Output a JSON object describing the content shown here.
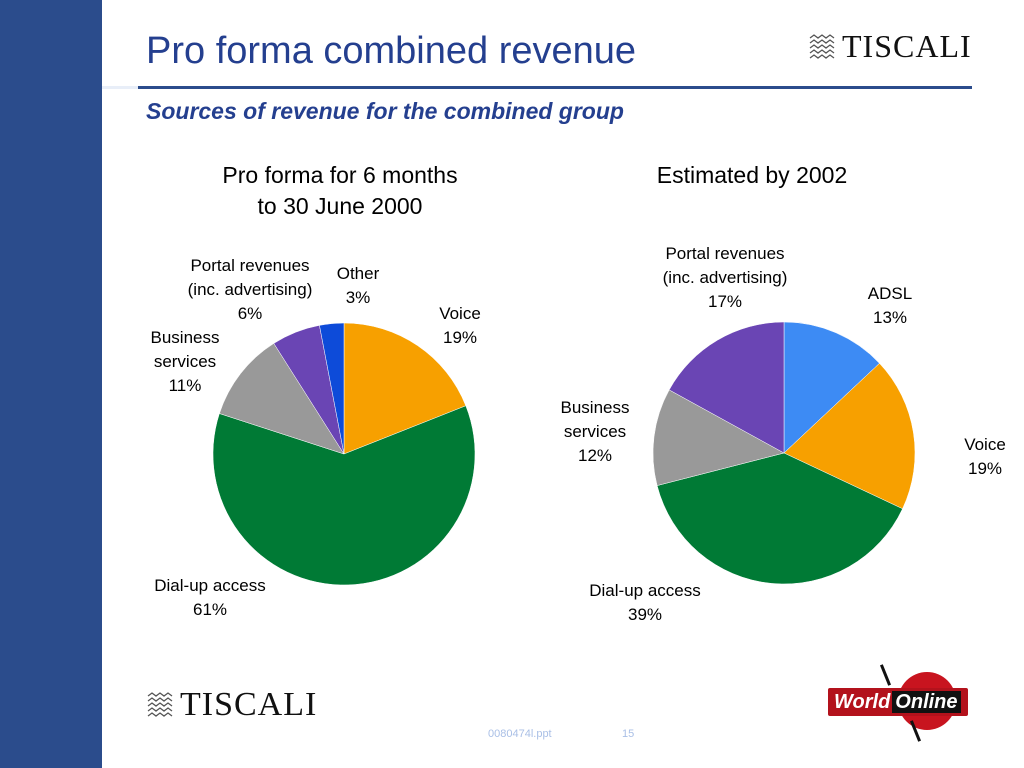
{
  "title": "Pro forma combined revenue",
  "subtitle": "Sources of revenue for the combined group",
  "brand": {
    "name": "TISCALI",
    "partner": "World Online",
    "partner_a": "World",
    "partner_b": "Online"
  },
  "footer": {
    "file": "0080474l.ppt",
    "page": "15"
  },
  "colors": {
    "voice": "#f7a000",
    "dialup": "#007a35",
    "business": "#999999",
    "portal": "#6a45b4",
    "other": "#0d4bd9",
    "adsl": "#3d8bf4",
    "accent": "#243f8f"
  },
  "chart_data": [
    {
      "type": "pie",
      "title": "Pro forma for 6 months\nto 30 June 2000",
      "slices": [
        {
          "label": "Voice",
          "value": 19,
          "display": "19%"
        },
        {
          "label": "Dial-up access",
          "value": 61,
          "display": "61%"
        },
        {
          "label": "Business\nservices",
          "value": 11,
          "display": "11%"
        },
        {
          "label": "Portal revenues\n(inc. advertising)",
          "value": 6,
          "display": "6%"
        },
        {
          "label": "Other",
          "value": 3,
          "display": "3%"
        }
      ]
    },
    {
      "type": "pie",
      "title": "Estimated by 2002",
      "slices": [
        {
          "label": "ADSL",
          "value": 13,
          "display": "13%"
        },
        {
          "label": "Voice",
          "value": 19,
          "display": "19%"
        },
        {
          "label": "Dial-up access",
          "value": 39,
          "display": "39%"
        },
        {
          "label": "Business\nservices",
          "value": 12,
          "display": "12%"
        },
        {
          "label": "Portal revenues\n(inc. advertising)",
          "value": 17,
          "display": "17%"
        }
      ]
    }
  ]
}
